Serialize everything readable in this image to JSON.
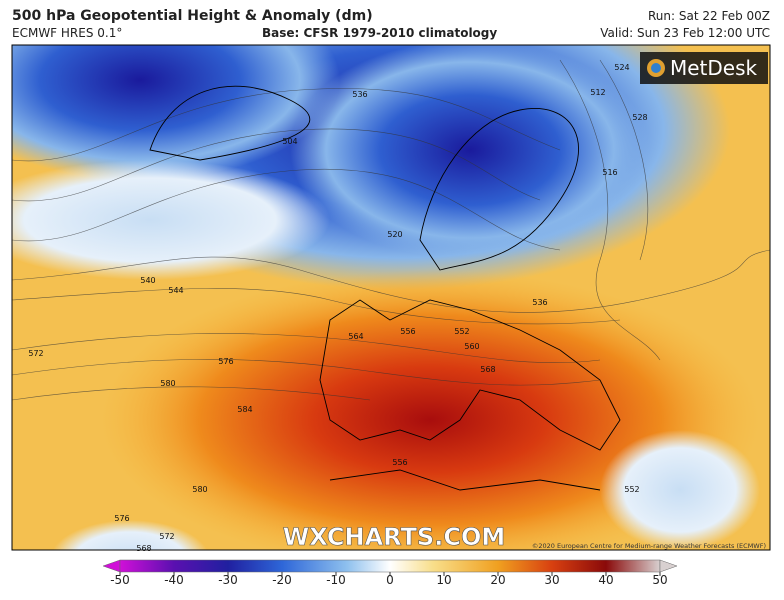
{
  "header": {
    "title": "500 hPa Geopotential Height & Anomaly (dm)",
    "model": "ECMWF HRES 0.1°",
    "base": "Base: CFSR 1979-2010 climatology",
    "run": "Run: Sat 22 Feb 00Z",
    "valid": "Valid: Sun 23 Feb 12:00 UTC"
  },
  "logo": "MetDesk",
  "watermark": "WXCHARTS.COM",
  "copyright": "©2020 European Centre for Medium-range Weather Forecasts (ECMWF)",
  "colorbar": {
    "ticks": [
      -50,
      -40,
      -30,
      -20,
      -10,
      0,
      10,
      20,
      30,
      40,
      50
    ]
  },
  "contour_labels": [
    540,
    544,
    572,
    576,
    580,
    584,
    580,
    576,
    572,
    568,
    504,
    536,
    520,
    536,
    552,
    556,
    560,
    564,
    568,
    556,
    552,
    524,
    528,
    512,
    516
  ]
}
